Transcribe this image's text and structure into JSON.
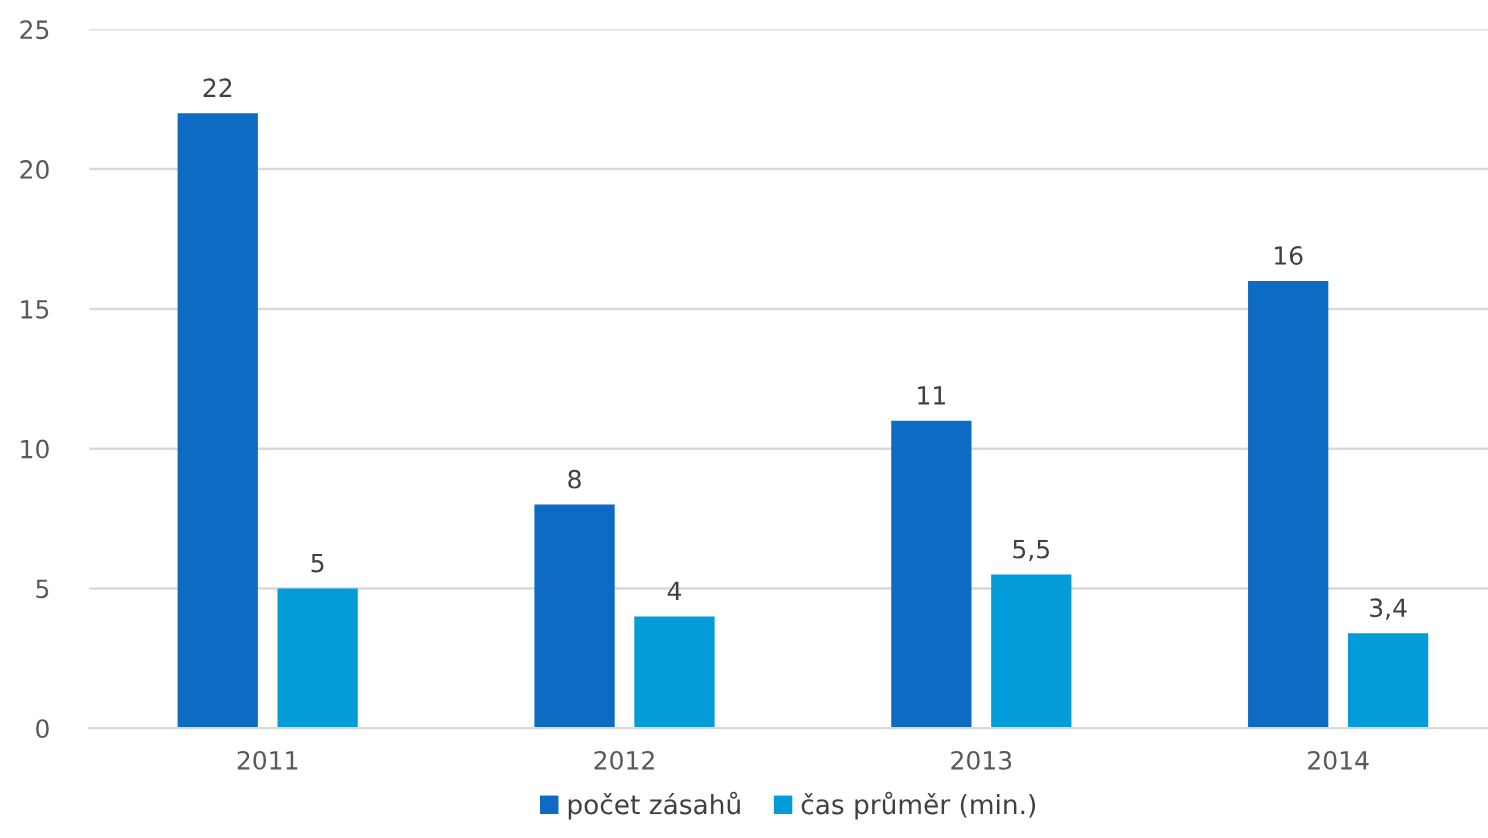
{
  "chart_data": {
    "type": "bar",
    "categories": [
      "2011",
      "2012",
      "2013",
      "2014"
    ],
    "series": [
      {
        "name": "počet zásahů",
        "color": "#0e6bc4",
        "values": [
          22,
          8,
          11,
          16
        ],
        "value_labels": [
          "22",
          "8",
          "11",
          "16"
        ]
      },
      {
        "name": "čas průměr (min.)",
        "color": "#039bd8",
        "values": [
          5,
          4,
          5.5,
          3.4
        ],
        "value_labels": [
          "5",
          "4",
          "5,5",
          "3,4"
        ]
      }
    ],
    "ylim": [
      0,
      25
    ],
    "yticks": [
      0,
      5,
      10,
      15,
      20,
      25
    ],
    "grid": "y",
    "legend": "bottom"
  }
}
